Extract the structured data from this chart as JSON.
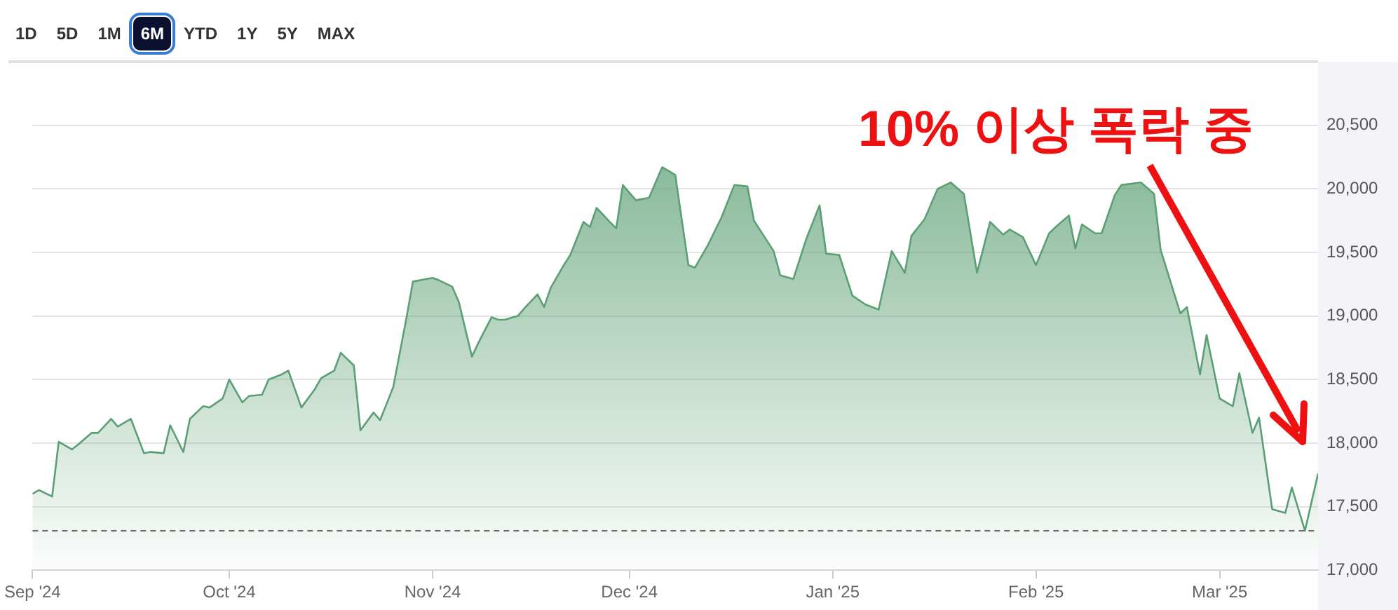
{
  "chart_data": {
    "type": "area",
    "annotations": [
      "1D",
      "5D",
      "1M",
      "6M",
      "YTD",
      "1Y",
      "5Y",
      "MAX",
      "10% 이상 폭락 중"
    ],
    "xlim": [
      "2024-09-01",
      "2025-03-16"
    ],
    "xticks": [
      {
        "value": "2024-09-01",
        "label": "Sep '24"
      },
      {
        "value": "2024-10-01",
        "label": "Oct '24"
      },
      {
        "value": "2024-11-01",
        "label": "Nov '24"
      },
      {
        "value": "2024-12-01",
        "label": "Dec '24"
      },
      {
        "value": "2025-01-01",
        "label": "Jan '25"
      },
      {
        "value": "2025-02-01",
        "label": "Feb '25"
      },
      {
        "value": "2025-03-01",
        "label": "Mar '25"
      }
    ],
    "ylim": [
      17000,
      21000
    ],
    "yticks": [
      {
        "value": 17000,
        "label": "17,000"
      },
      {
        "value": 17500,
        "label": "17,500"
      },
      {
        "value": 18000,
        "label": "18,000"
      },
      {
        "value": 18500,
        "label": "18,500"
      },
      {
        "value": 19000,
        "label": "19,000"
      },
      {
        "value": 19500,
        "label": "19,500"
      },
      {
        "value": 20000,
        "label": "20,000"
      },
      {
        "value": 20500,
        "label": "20,500"
      }
    ],
    "grid": "y",
    "legend": false,
    "marker": "none",
    "ref_lines": [
      {
        "axis": "y",
        "value": 17310,
        "color": "#666666",
        "line_style": "dashed"
      }
    ],
    "series": [
      {
        "color": "#5c9f74",
        "x": [
          "2024-09-01",
          "2024-09-02",
          "2024-09-04",
          "2024-09-05",
          "2024-09-07",
          "2024-09-08",
          "2024-09-10",
          "2024-09-11",
          "2024-09-13",
          "2024-09-14",
          "2024-09-16",
          "2024-09-18",
          "2024-09-19",
          "2024-09-21",
          "2024-09-22",
          "2024-09-24",
          "2024-09-25",
          "2024-09-27",
          "2024-09-28",
          "2024-09-30",
          "2024-10-01",
          "2024-10-03",
          "2024-10-04",
          "2024-10-06",
          "2024-10-07",
          "2024-10-09",
          "2024-10-10",
          "2024-10-12",
          "2024-10-14",
          "2024-10-15",
          "2024-10-17",
          "2024-10-18",
          "2024-10-20",
          "2024-10-21",
          "2024-10-23",
          "2024-10-24",
          "2024-10-26",
          "2024-10-28",
          "2024-10-29",
          "2024-11-01",
          "2024-11-02",
          "2024-11-04",
          "2024-11-05",
          "2024-11-07",
          "2024-11-08",
          "2024-11-10",
          "2024-11-11",
          "2024-11-12",
          "2024-11-14",
          "2024-11-15",
          "2024-11-17",
          "2024-11-18",
          "2024-11-19",
          "2024-11-21",
          "2024-11-22",
          "2024-11-24",
          "2024-11-25",
          "2024-11-26",
          "2024-11-28",
          "2024-11-29",
          "2024-11-30",
          "2024-12-02",
          "2024-12-04",
          "2024-12-06",
          "2024-12-08",
          "2024-12-10",
          "2024-12-11",
          "2024-12-13",
          "2024-12-15",
          "2024-12-17",
          "2024-12-19",
          "2024-12-20",
          "2024-12-23",
          "2024-12-24",
          "2024-12-26",
          "2024-12-28",
          "2024-12-30",
          "2024-12-31",
          "2025-01-02",
          "2025-01-04",
          "2025-01-06",
          "2025-01-08",
          "2025-01-10",
          "2025-01-12",
          "2025-01-13",
          "2025-01-15",
          "2025-01-17",
          "2025-01-19",
          "2025-01-21",
          "2025-01-23",
          "2025-01-25",
          "2025-01-27",
          "2025-01-28",
          "2025-01-30",
          "2025-02-01",
          "2025-02-03",
          "2025-02-04",
          "2025-02-06",
          "2025-02-07",
          "2025-02-08",
          "2025-02-10",
          "2025-02-11",
          "2025-02-13",
          "2025-02-14",
          "2025-02-17",
          "2025-02-19",
          "2025-02-20",
          "2025-02-23",
          "2025-02-24",
          "2025-02-26",
          "2025-02-27",
          "2025-03-01",
          "2025-03-03",
          "2025-03-04",
          "2025-03-06",
          "2025-03-07",
          "2025-03-09",
          "2025-03-11",
          "2025-03-12",
          "2025-03-14",
          "2025-03-16"
        ],
        "values": [
          17600,
          17630,
          17580,
          18010,
          17950,
          17990,
          18080,
          18080,
          18190,
          18130,
          18190,
          17920,
          17930,
          17920,
          18140,
          17930,
          18190,
          18290,
          18280,
          18350,
          18500,
          18320,
          18370,
          18380,
          18500,
          18540,
          18570,
          18280,
          18420,
          18510,
          18570,
          18710,
          18610,
          18100,
          18240,
          18180,
          18440,
          18980,
          19270,
          19300,
          19280,
          19230,
          19110,
          18680,
          18790,
          18990,
          18970,
          18970,
          19000,
          19060,
          19170,
          19070,
          19220,
          19400,
          19480,
          19740,
          19700,
          19850,
          19740,
          19690,
          20030,
          19910,
          19930,
          20170,
          20110,
          19400,
          19380,
          19560,
          19770,
          20030,
          20020,
          19750,
          19510,
          19320,
          19290,
          19610,
          19870,
          19490,
          19480,
          19160,
          19090,
          19050,
          19510,
          19340,
          19630,
          19760,
          20000,
          20050,
          19960,
          19340,
          19740,
          19640,
          19680,
          19620,
          19400,
          19650,
          19700,
          19790,
          19530,
          19720,
          19650,
          19650,
          19950,
          20030,
          20050,
          19960,
          19520,
          19020,
          19070,
          18540,
          18850,
          18350,
          18290,
          18550,
          18080,
          18200,
          17480,
          17450,
          17650,
          17310,
          17760
        ]
      }
    ]
  }
}
